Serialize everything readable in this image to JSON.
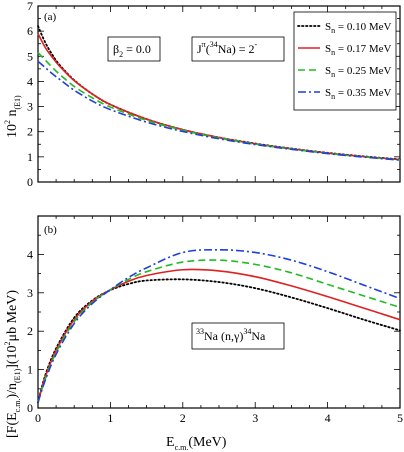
{
  "chart_data": [
    {
      "panel": "(a)",
      "type": "line",
      "ylabel": "10",
      "ylabel_sup": "2",
      "ylabel_rest": " n",
      "ylabel_sub": "(E1)",
      "xlim": [
        0,
        5
      ],
      "ylim": [
        0,
        7
      ],
      "yticks": [
        0,
        1,
        2,
        3,
        4,
        5,
        6,
        7
      ],
      "annotation_beta": {
        "main": "β",
        "sub": "2",
        "rest": " = 0.0"
      },
      "annotation_spin": {
        "j": "J",
        "pi": "π",
        "open": "(",
        "mass": "34",
        "el": "Na) = 2",
        "minus": "-"
      },
      "legend": {
        "prefix": "S",
        "sub": "n",
        "labels": [
          "= 0.10 MeV",
          "= 0.17 MeV",
          "= 0.25 MeV",
          "= 0.35 MeV"
        ]
      },
      "series": [
        {
          "name": "S_n = 0.10 MeV",
          "color": "#000000",
          "style": "dotted",
          "x": [
            0,
            0.1,
            0.2,
            0.3,
            0.5,
            0.75,
            1.0,
            1.5,
            2.0,
            2.5,
            3.0,
            3.5,
            4.0,
            4.5,
            5.0
          ],
          "y": [
            6.2,
            5.55,
            5.05,
            4.65,
            4.05,
            3.5,
            3.08,
            2.5,
            2.08,
            1.77,
            1.53,
            1.33,
            1.16,
            1.02,
            0.9
          ]
        },
        {
          "name": "S_n = 0.17 MeV",
          "color": "#e02020",
          "style": "solid",
          "x": [
            0,
            0.1,
            0.2,
            0.3,
            0.5,
            0.75,
            1.0,
            1.5,
            2.0,
            2.5,
            3.0,
            3.5,
            4.0,
            4.5,
            5.0
          ],
          "y": [
            5.9,
            5.35,
            4.95,
            4.6,
            4.03,
            3.5,
            3.08,
            2.5,
            2.08,
            1.77,
            1.52,
            1.32,
            1.15,
            1.01,
            0.89
          ]
        },
        {
          "name": "S_n = 0.25 MeV",
          "color": "#22bb22",
          "style": "dashed",
          "x": [
            0,
            0.1,
            0.2,
            0.3,
            0.5,
            0.75,
            1.0,
            1.5,
            2.0,
            2.5,
            3.0,
            3.5,
            4.0,
            4.5,
            5.0
          ],
          "y": [
            5.15,
            4.85,
            4.55,
            4.28,
            3.8,
            3.35,
            2.98,
            2.45,
            2.06,
            1.75,
            1.51,
            1.31,
            1.14,
            1.0,
            0.88
          ]
        },
        {
          "name": "S_n = 0.35 MeV",
          "color": "#1f3fd8",
          "style": "dashdot",
          "x": [
            0,
            0.1,
            0.2,
            0.3,
            0.5,
            0.75,
            1.0,
            1.5,
            2.0,
            2.5,
            3.0,
            3.5,
            4.0,
            4.5,
            5.0
          ],
          "y": [
            4.8,
            4.55,
            4.3,
            4.08,
            3.65,
            3.22,
            2.88,
            2.38,
            2.01,
            1.72,
            1.49,
            1.3,
            1.13,
            0.99,
            0.87
          ]
        }
      ]
    },
    {
      "panel": "(b)",
      "type": "line",
      "xlabel": "E",
      "xlabel_sub": "c.m.",
      "xlabel_rest": "(MeV)",
      "ylabel": "[F(E",
      "ylabel_sub1": "c.m.",
      "ylabel_mid": ")/n",
      "ylabel_sub2": "(E1)",
      "ylabel_rest": "](10",
      "ylabel_sup": "2",
      "ylabel_end": "μb MeV)",
      "xlim": [
        0,
        5
      ],
      "ylim": [
        0,
        5
      ],
      "xticks": [
        0,
        1,
        2,
        3,
        4,
        5
      ],
      "yticks": [
        0,
        1,
        2,
        3,
        4
      ],
      "reaction": {
        "m1": "33",
        "p1": "Na (n,",
        "gamma": "γ",
        "p2": ")",
        "m2": "34",
        "p3": "Na"
      },
      "series": [
        {
          "name": "S_n = 0.10 MeV",
          "color": "#000000",
          "style": "dotted",
          "x": [
            0,
            0.1,
            0.25,
            0.5,
            0.75,
            1.0,
            1.25,
            1.5,
            2.0,
            2.5,
            3.0,
            3.5,
            4.0,
            4.5,
            5.0
          ],
          "y": [
            0.15,
            0.85,
            1.55,
            2.35,
            2.8,
            3.07,
            3.23,
            3.32,
            3.35,
            3.28,
            3.12,
            2.88,
            2.6,
            2.3,
            2.02
          ]
        },
        {
          "name": "S_n = 0.17 MeV",
          "color": "#e02020",
          "style": "solid",
          "x": [
            0,
            0.1,
            0.25,
            0.5,
            0.75,
            1.0,
            1.25,
            1.5,
            2.0,
            2.5,
            3.0,
            3.5,
            4.0,
            4.5,
            5.0
          ],
          "y": [
            0.15,
            0.8,
            1.5,
            2.3,
            2.78,
            3.08,
            3.3,
            3.45,
            3.6,
            3.57,
            3.42,
            3.18,
            2.9,
            2.6,
            2.3
          ]
        },
        {
          "name": "S_n = 0.25 MeV",
          "color": "#22bb22",
          "style": "dashed",
          "x": [
            0,
            0.1,
            0.25,
            0.5,
            0.75,
            1.0,
            1.25,
            1.5,
            2.0,
            2.5,
            3.0,
            3.5,
            4.0,
            4.5,
            5.0
          ],
          "y": [
            0.15,
            0.75,
            1.45,
            2.25,
            2.75,
            3.08,
            3.35,
            3.55,
            3.8,
            3.85,
            3.74,
            3.52,
            3.22,
            2.92,
            2.62
          ]
        },
        {
          "name": "S_n = 0.35 MeV",
          "color": "#1f3fd8",
          "style": "dashdot",
          "x": [
            0,
            0.1,
            0.25,
            0.5,
            0.75,
            1.0,
            1.25,
            1.5,
            2.0,
            2.5,
            3.0,
            3.5,
            4.0,
            4.5,
            5.0
          ],
          "y": [
            0.15,
            0.72,
            1.4,
            2.2,
            2.72,
            3.08,
            3.4,
            3.65,
            4.05,
            4.12,
            4.05,
            3.85,
            3.55,
            3.2,
            2.85
          ]
        }
      ]
    }
  ]
}
